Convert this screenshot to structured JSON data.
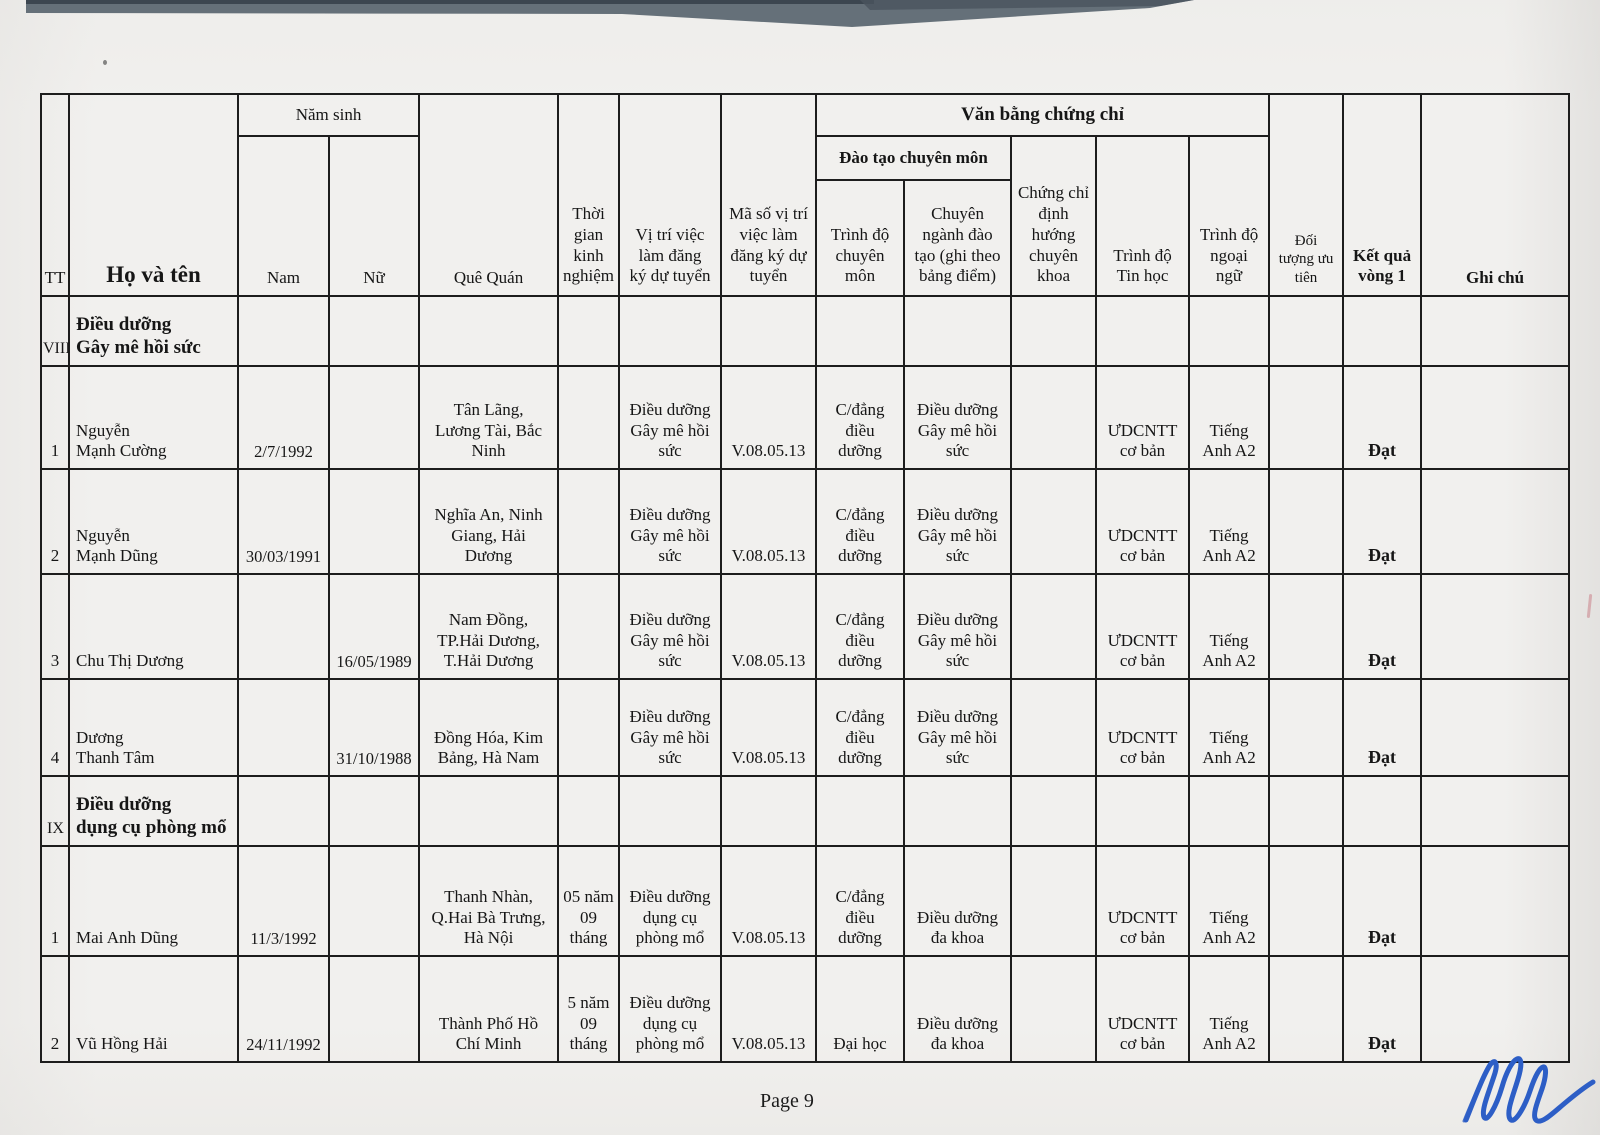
{
  "page": {
    "footer": "Page 9"
  },
  "artifacts": {
    "band_color": "#657079",
    "band_edge_color": "#3c4650",
    "signature_color": "#2d5ec6"
  },
  "table": {
    "header": {
      "tt": "TT",
      "ho_va_ten": "Họ và tên",
      "nam_sinh": "Năm sinh",
      "nam": "Nam",
      "nu": "Nữ",
      "que_quan": "Quê Quán",
      "thoi_gian": "Thời\ngian\nkinh\nnghiệm",
      "vi_tri": "Vị trí việc\nlàm đăng\nký dự tuyển",
      "ma_so": "Mã số vị trí\nviệc làm\nđăng ký dự\ntuyển",
      "van_bang": "Văn bằng chứng chỉ",
      "dao_tao": "Đào tạo chuyên môn",
      "trinh_do_cm": "Trình độ\nchuyên\nmôn",
      "chuyen_nganh": "Chuyên\nngành đào\ntạo (ghi theo\nbảng điểm)",
      "chung_chi": "Chứng chỉ\nđịnh\nhướng\nchuyên\nkhoa",
      "tin_hoc": "Trình độ\nTin học",
      "ngoai_ngu": "Trình độ\nngoại\nngữ",
      "doi_tuong": "Đối\ntượng ưu\ntiên",
      "ket_qua": "Kết quả\nvòng 1",
      "ghi_chu": "Ghi chú"
    },
    "sections": [
      {
        "no": "VIII",
        "title": "Điều dưỡng\nGây mê hồi sức",
        "rows": [
          {
            "tt": "1",
            "name": "Nguyễn\nMạnh Cường",
            "nam": "2/7/1992",
            "nu": "",
            "que_quan": "Tân Lãng,\nLương Tài, Bắc\nNinh",
            "kinh_nghiem": "",
            "vi_tri": "Điều dưỡng\nGây mê hồi\nsức",
            "ma_so": "V.08.05.13",
            "trinh_do_cm": "C/đẳng\nđiều\ndưỡng",
            "chuyen_nganh": "Điều dưỡng\nGây mê hồi\nsức",
            "chung_chi": "",
            "tin_hoc": "ƯDCNTT\ncơ bản",
            "ngoai_ngu": "Tiếng\nAnh A2",
            "doi_tuong": "",
            "ket_qua": "Đạt",
            "ghi_chu": ""
          },
          {
            "tt": "2",
            "name": "Nguyễn\nMạnh Dũng",
            "nam": "30/03/1991",
            "nu": "",
            "que_quan": "Nghĩa An, Ninh\nGiang, Hải\nDương",
            "kinh_nghiem": "",
            "vi_tri": "Điều dưỡng\nGây mê hồi\nsức",
            "ma_so": "V.08.05.13",
            "trinh_do_cm": "C/đẳng\nđiều\ndưỡng",
            "chuyen_nganh": "Điều dưỡng\nGây mê hồi\nsức",
            "chung_chi": "",
            "tin_hoc": "ƯDCNTT\ncơ bản",
            "ngoai_ngu": "Tiếng\nAnh A2",
            "doi_tuong": "",
            "ket_qua": "Đạt",
            "ghi_chu": ""
          },
          {
            "tt": "3",
            "name": "Chu Thị Dương",
            "nam": "",
            "nu": "16/05/1989",
            "que_quan": "Nam Đồng,\nTP.Hải Dương,\nT.Hải Dương",
            "kinh_nghiem": "",
            "vi_tri": "Điều dưỡng\nGây mê hồi\nsức",
            "ma_so": "V.08.05.13",
            "trinh_do_cm": "C/đẳng\nđiều\ndưỡng",
            "chuyen_nganh": "Điều dưỡng\nGây mê hồi\nsức",
            "chung_chi": "",
            "tin_hoc": "ƯDCNTT\ncơ bản",
            "ngoai_ngu": "Tiếng\nAnh A2",
            "doi_tuong": "",
            "ket_qua": "Đạt",
            "ghi_chu": ""
          },
          {
            "tt": "4",
            "name": "Dương\nThanh Tâm",
            "nam": "",
            "nu": "31/10/1988",
            "que_quan": "Đồng Hóa, Kim\nBảng, Hà Nam",
            "kinh_nghiem": "",
            "vi_tri": "Điều dưỡng\nGây mê hồi\nsức",
            "ma_so": "V.08.05.13",
            "trinh_do_cm": "C/đẳng\nđiều\ndưỡng",
            "chuyen_nganh": "Điều dưỡng\nGây mê hồi\nsức",
            "chung_chi": "",
            "tin_hoc": "ƯDCNTT\ncơ bản",
            "ngoai_ngu": "Tiếng\nAnh A2",
            "doi_tuong": "",
            "ket_qua": "Đạt",
            "ghi_chu": ""
          }
        ]
      },
      {
        "no": "IX",
        "title": "Điều dưỡng\ndụng cụ phòng mổ",
        "rows": [
          {
            "tt": "1",
            "name": "Mai Anh Dũng",
            "nam": "11/3/1992",
            "nu": "",
            "que_quan": "Thanh Nhàn,\nQ.Hai Bà Trưng,\nHà Nội",
            "kinh_nghiem": "05 năm\n09\ntháng",
            "vi_tri": "Điều dưỡng\ndụng cụ\nphòng mổ",
            "ma_so": "V.08.05.13",
            "trinh_do_cm": "C/đẳng\nđiều\ndưỡng",
            "chuyen_nganh": "Điều dưỡng\nđa khoa",
            "chung_chi": "",
            "tin_hoc": "ƯDCNTT\ncơ bản",
            "ngoai_ngu": "Tiếng\nAnh A2",
            "doi_tuong": "",
            "ket_qua": "Đạt",
            "ghi_chu": ""
          },
          {
            "tt": "2",
            "name": "Vũ Hồng Hải",
            "nam": "24/11/1992",
            "nu": "",
            "que_quan": "Thành Phố Hồ\nChí Minh",
            "kinh_nghiem": "5 năm\n09\ntháng",
            "vi_tri": "Điều dưỡng\ndụng cụ\nphòng mổ",
            "ma_so": "V.08.05.13",
            "trinh_do_cm": "Đại học",
            "chuyen_nganh": "Điều dưỡng\nđa khoa",
            "chung_chi": "",
            "tin_hoc": "ƯDCNTT\ncơ bản",
            "ngoai_ngu": "Tiếng\nAnh A2",
            "doi_tuong": "",
            "ket_qua": "Đạt",
            "ghi_chu": ""
          }
        ]
      }
    ]
  }
}
